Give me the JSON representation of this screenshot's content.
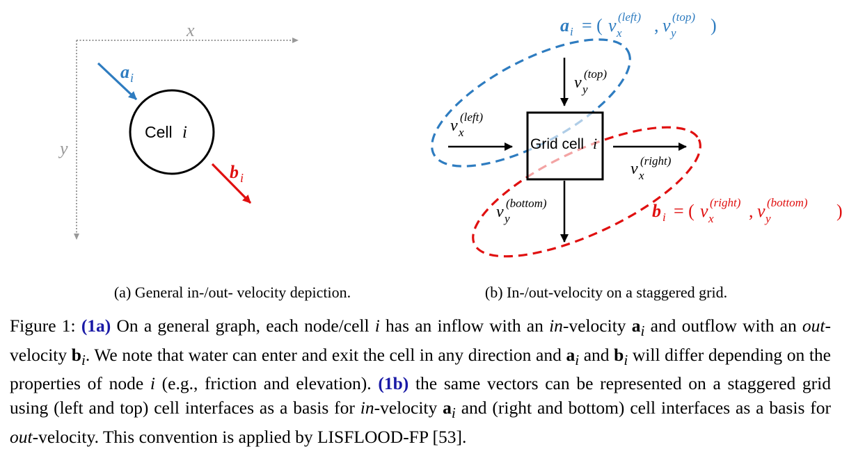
{
  "figure_a": {
    "axis_x": "x",
    "axis_y": "y",
    "cell_label": "Cell",
    "cell_index": "i",
    "vec_in": "a",
    "vec_out": "b",
    "sub": "i",
    "caption": "(a) General in-/out- velocity depiction."
  },
  "figure_b": {
    "grid_label": "Grid cell",
    "grid_index": "i",
    "v": "v",
    "sub_x": "x",
    "sub_y": "y",
    "sup_top": "(top)",
    "sup_left": "(left)",
    "sup_right": "(right)",
    "sup_bottom": "(bottom)",
    "a_eq": "a",
    "b_eq": "b",
    "sub_i": "i",
    "eq_sign": "= (",
    "comma": ",",
    "close": ")",
    "caption": "(b) In-/out-velocity on a staggered grid."
  },
  "caption": {
    "figure_label": "Figure 1:",
    "ref1": "(1a)",
    "t1": " On a general graph, each node/cell ",
    "i1": "i",
    "t2": " has an inflow with an ",
    "in1": "in",
    "t3": "-velocity ",
    "a1": "a",
    "s1": "i",
    "t4": " and outflow with an ",
    "out1": "out",
    "t5": "-velocity ",
    "b1": "b",
    "s2": "i",
    "t6": ". We note that water can enter and exit the cell in any direction and ",
    "a2": "a",
    "s3": "i",
    "t7": " and ",
    "b2": "b",
    "s4": "i",
    "t8": " will differ depending on the properties of node ",
    "i2": "i",
    "t9": " (e.g., friction and elevation). ",
    "ref2": "(1b)",
    "t10": " the same vectors can be represented on a staggered grid using (left and top) cell interfaces as a basis for ",
    "in2": "in",
    "t11": "-velocity ",
    "a3": "a",
    "s5": "i",
    "t12": " and (right and bottom) cell interfaces as a basis for ",
    "out2": "out",
    "t13": "-velocity. This convention is applied by LISFLOOD-FP [53]."
  },
  "colors": {
    "blue": "#2e7cc0",
    "red": "#e01010",
    "gray": "#999999",
    "ref": "#1a1aa6"
  }
}
